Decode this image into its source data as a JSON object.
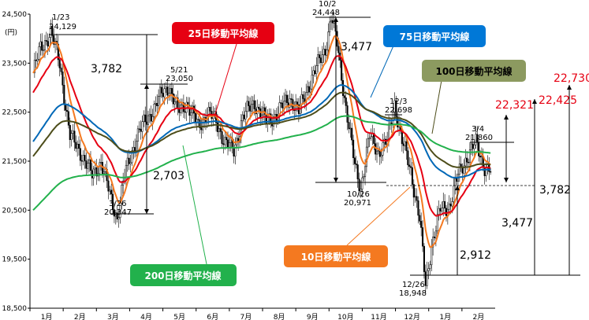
{
  "chart_data": {
    "type": "candlestick",
    "yunit": "(円)",
    "ylim": [
      18500,
      24500
    ],
    "yticks": [
      "24,500",
      "23,500",
      "22,500",
      "21,500",
      "20,500",
      "19,500",
      "18,500"
    ],
    "xticks": [
      "1月",
      "2月",
      "3月",
      "4月",
      "5月",
      "6月",
      "7月",
      "8月",
      "9月",
      "10月",
      "11月",
      "12月",
      "1月",
      "2月"
    ],
    "series": [
      {
        "name": "10日移動平均線",
        "color": "#f47920"
      },
      {
        "name": "25日移動平均線",
        "color": "#e60012"
      },
      {
        "name": "75日移動平均線",
        "color": "#0068b7"
      },
      {
        "name": "100日移動平均線",
        "color": "#4d4d1a"
      },
      {
        "name": "200日移動平均線",
        "color": "#22b14c"
      }
    ],
    "annotations": {
      "p1_date": "1/23",
      "p1_value": "24,129",
      "p2_date": "3/26",
      "p2_value": "20,347",
      "p3_date": "5/21",
      "p3_value": "23,050",
      "p4_date": "10/2",
      "p4_value": "24,448",
      "p5_date": "10/26",
      "p5_value": "20,971",
      "p6_date": "12/3",
      "p6_value": "22,698",
      "p7_date": "12/26",
      "p7_value": "18,948",
      "p8_date": "3/4",
      "p8_value": "21,860",
      "d1": "3,782",
      "d2": "2,703",
      "d3": "3,477",
      "d4": "2,912",
      "r1": "3,477",
      "r2": "3,782",
      "t1": "22,321",
      "t2": "22,425",
      "t3": "22,730"
    }
  }
}
